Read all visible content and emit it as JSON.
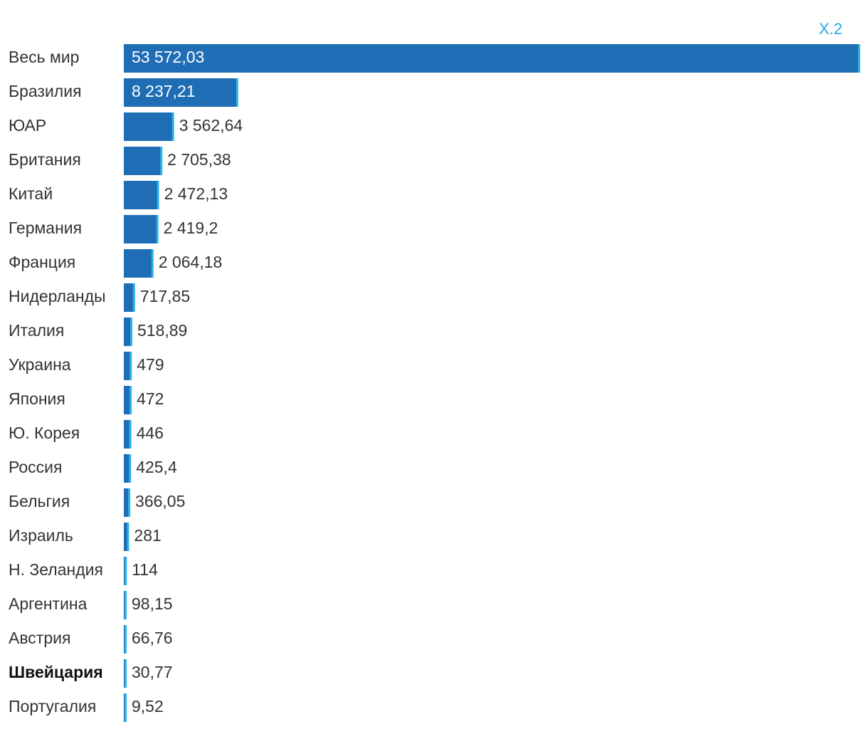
{
  "figure_label": "X.2",
  "colors": {
    "bar": "#1f6db5",
    "bar_edge": "#29b3e8",
    "label_dark": "#333333",
    "label_inside": "#ffffff",
    "figure_label": "#29a8e0"
  },
  "chart_data": {
    "type": "bar",
    "orientation": "horizontal",
    "title": "",
    "xlabel": "",
    "ylabel": "",
    "grid": false,
    "legend": "none",
    "xlim": [
      0,
      53572.03
    ],
    "categories": [
      "Весь мир",
      "Бразилия",
      "ЮАР",
      "Британия",
      "Китай",
      "Германия",
      "Франция",
      "Нидерланды",
      "Италия",
      "Украина",
      "Япония",
      "Ю. Корея",
      "Россия",
      "Бельгия",
      "Израиль",
      "Н. Зеландия",
      "Аргентина",
      "Австрия",
      "Швейцария",
      "Португалия"
    ],
    "values": [
      53572.03,
      8237.21,
      3562.64,
      2705.38,
      2472.13,
      2419.2,
      2064.18,
      717.85,
      518.89,
      479,
      472,
      446,
      425.4,
      366.05,
      281,
      114,
      98.15,
      66.76,
      30.77,
      9.52
    ],
    "value_labels": [
      "53 572,03",
      "8 237,21",
      "3 562,64",
      "2 705,38",
      "2 472,13",
      "2 419,2",
      "2 064,18",
      "717,85",
      "518,89",
      "479",
      "472",
      "446",
      "425,4",
      "366,05",
      "281",
      "114",
      "98,15",
      "66,76",
      "30,77",
      "9,52"
    ],
    "highlighted_category": "Швейцария"
  }
}
